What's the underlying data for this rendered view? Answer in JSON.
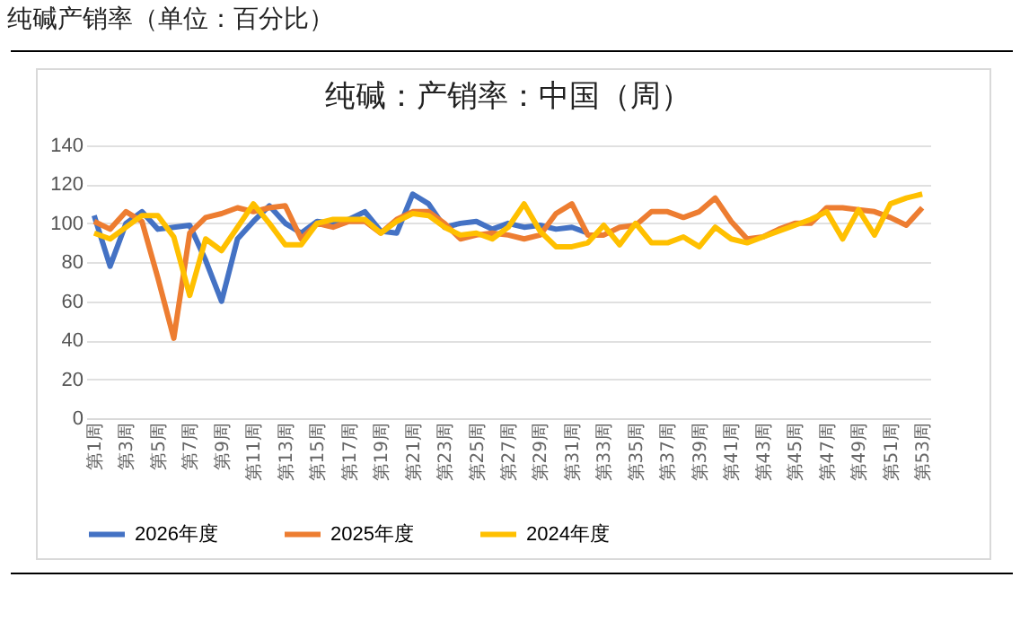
{
  "chart_data": {
    "type": "line",
    "title": "纯碱产销率（单位：百分比）",
    "subtitle": "纯碱：产销率：中国（周）",
    "categories": [
      "第1周",
      null,
      "第3周",
      null,
      "第5周",
      null,
      "第7周",
      null,
      "第9周",
      null,
      "第11周",
      null,
      "第13周",
      null,
      "第15周",
      null,
      "第17周",
      null,
      "第19周",
      null,
      "第21周",
      null,
      "第23周",
      null,
      "第25周",
      null,
      "第27周",
      null,
      "第29周",
      null,
      "第31周",
      null,
      "第33周",
      null,
      "第35周",
      null,
      "第37周",
      null,
      "第39周",
      null,
      "第41周",
      null,
      "第43周",
      null,
      "第45周",
      null,
      "第47周",
      null,
      "第49周",
      null,
      "第51周",
      null,
      "第53周"
    ],
    "series": [
      {
        "name": "2026年度",
        "color": "#4472c4",
        "values": [
          104,
          78,
          100,
          106,
          97,
          98,
          99,
          81,
          60,
          92,
          101,
          109,
          100,
          95,
          101,
          100,
          102,
          106,
          96,
          95,
          115,
          110,
          98,
          100,
          101,
          97,
          100,
          98,
          99,
          97,
          98,
          95,
          null,
          null,
          null,
          null,
          null,
          null,
          null,
          null,
          null,
          null,
          null,
          null,
          null,
          null,
          null,
          null,
          null,
          null,
          null,
          null,
          null
        ]
      },
      {
        "name": "2025年度",
        "color": "#ed7d31",
        "values": [
          101,
          97,
          106,
          101,
          72,
          41,
          95,
          103,
          105,
          108,
          106,
          108,
          109,
          92,
          100,
          98,
          101,
          101,
          95,
          102,
          106,
          106,
          100,
          92,
          94,
          95,
          94,
          92,
          94,
          105,
          110,
          94,
          94,
          98,
          99,
          106,
          106,
          103,
          106,
          113,
          101,
          92,
          93,
          97,
          100,
          100,
          108,
          108,
          107,
          106,
          103,
          99,
          108
        ]
      },
      {
        "name": "2024年度",
        "color": "#ffc000",
        "values": [
          95,
          92,
          98,
          104,
          104,
          93,
          63,
          92,
          86,
          98,
          110,
          100,
          89,
          89,
          100,
          102,
          102,
          102,
          95,
          101,
          105,
          104,
          98,
          94,
          95,
          92,
          98,
          110,
          96,
          88,
          88,
          90,
          99,
          89,
          100,
          90,
          90,
          93,
          88,
          98,
          92,
          90,
          93,
          96,
          99,
          102,
          106,
          92,
          107,
          94,
          110,
          113,
          115
        ]
      }
    ],
    "ylim": [
      0,
      140
    ],
    "yticks": [
      0,
      20,
      40,
      60,
      80,
      100,
      120,
      140
    ],
    "grid": "y",
    "legend": "bottom",
    "line_style": "solid",
    "marker": "none"
  }
}
